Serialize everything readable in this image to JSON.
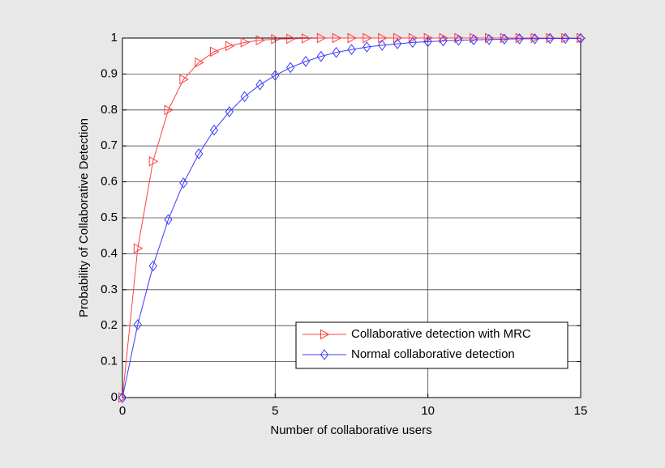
{
  "chart_data": {
    "type": "line",
    "xlabel": "Number of collaborative users",
    "ylabel": "Probability of Collaborative Detection",
    "x": [
      0,
      0.5,
      1,
      1.5,
      2,
      2.5,
      3,
      3.5,
      4,
      4.5,
      5,
      5.5,
      6,
      6.5,
      7,
      7.5,
      8,
      8.5,
      9,
      9.5,
      10,
      10.5,
      11,
      11.5,
      12,
      12.5,
      13,
      13.5,
      14,
      14.5,
      15
    ],
    "series": [
      {
        "name": "Collaborative detection with MRC",
        "color": "#ff4040",
        "marker": "triangle-right",
        "values": [
          0,
          0.415,
          0.657,
          0.8,
          0.885,
          0.932,
          0.962,
          0.978,
          0.988,
          0.994,
          0.997,
          0.998,
          0.999,
          1,
          1,
          1,
          1,
          1,
          1,
          1,
          1,
          1,
          1,
          1,
          1,
          1,
          1,
          1,
          1,
          1,
          1
        ]
      },
      {
        "name": "Normal collaborative detection",
        "color": "#3a3aff",
        "marker": "diamond",
        "values": [
          0,
          0.203,
          0.366,
          0.495,
          0.597,
          0.678,
          0.744,
          0.795,
          0.837,
          0.87,
          0.896,
          0.918,
          0.935,
          0.949,
          0.96,
          0.968,
          0.975,
          0.98,
          0.984,
          0.988,
          0.99,
          0.992,
          0.994,
          0.995,
          0.996,
          0.997,
          0.998,
          0.998,
          0.999,
          0.999,
          0.999
        ]
      }
    ],
    "xlim": [
      0,
      15
    ],
    "xticks": [
      0,
      5,
      10,
      15
    ],
    "ylim": [
      0,
      1
    ],
    "yticks": [
      0,
      0.1,
      0.2,
      0.3,
      0.4,
      0.5,
      0.6,
      0.7,
      0.8,
      0.9,
      1
    ],
    "grid": true,
    "legend": "lower right"
  }
}
